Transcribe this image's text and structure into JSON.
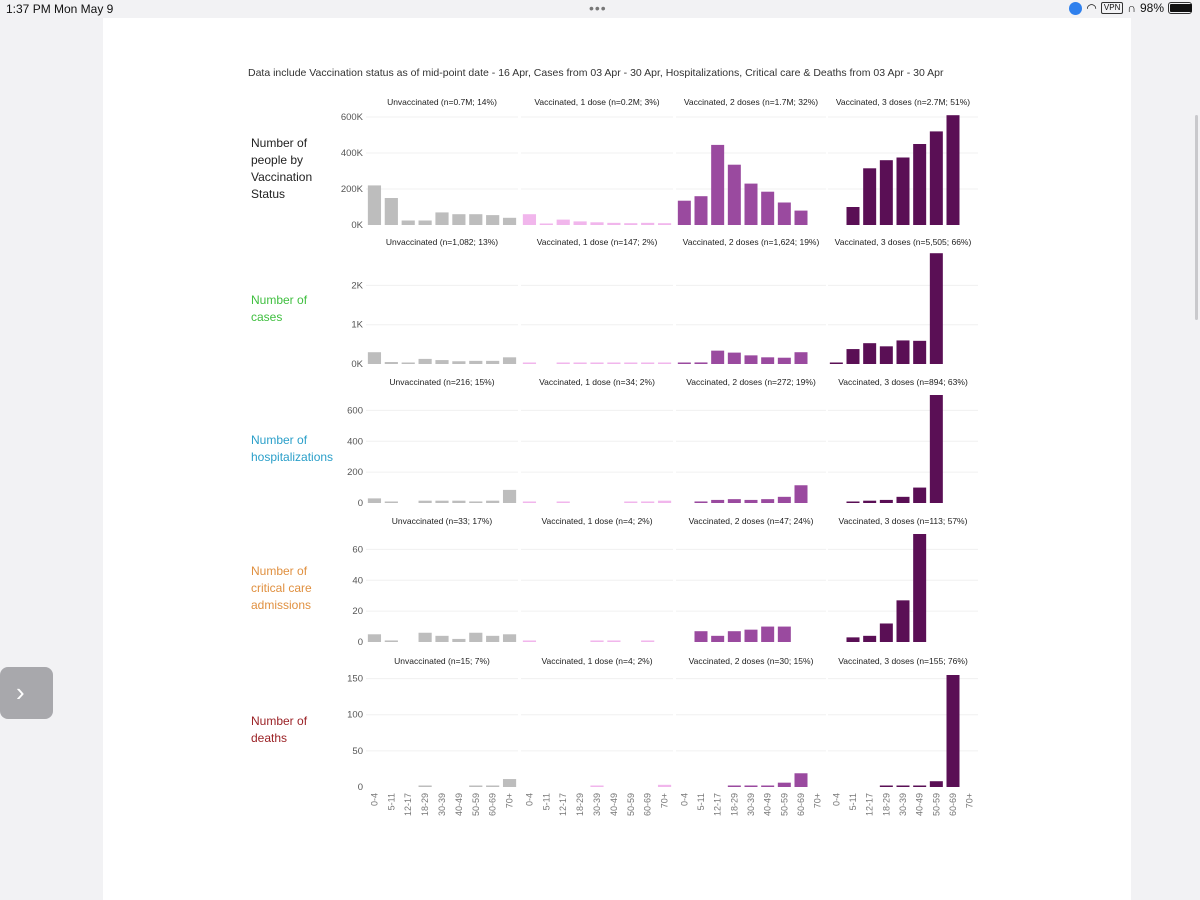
{
  "status_bar": {
    "time": "1:37 PM",
    "date": "Mon May 9",
    "vpn": "VPN",
    "battery": "98%",
    "battery_level": 0.98
  },
  "caption": "Data include Vaccination status as of mid-point date - 16 Apr, Cases  from  03 Apr - 30 Apr, Hospitalizations, Critical care & Deaths from 03 Apr - 30 Apr",
  "colors": {
    "unvaccinated": "#bdbdbd",
    "one_dose": "#f1b6ec",
    "two_doses": "#9a4a9f",
    "three_doses": "#5a0f55"
  },
  "chart_data": {
    "type": "bar",
    "categories": [
      "0-4",
      "5-11",
      "12-17",
      "18-29",
      "30-39",
      "40-49",
      "50-59",
      "60-69",
      "70+"
    ],
    "groups": [
      "unvaccinated",
      "one_dose",
      "two_doses",
      "three_doses"
    ],
    "rows": [
      {
        "label": "Number of people by Vaccination Status",
        "label_lines": [
          "Number of",
          "people by",
          "Vaccination",
          "Status"
        ],
        "label_color": "#222222",
        "ymax": 600000,
        "ticks": [
          {
            "v": 600000,
            "t": "600K"
          },
          {
            "v": 400000,
            "t": "400K"
          },
          {
            "v": 200000,
            "t": "200K"
          },
          {
            "v": 0,
            "t": "0K"
          }
        ],
        "panels": [
          {
            "title": "Unvaccinated (n=0.7M; 14%)",
            "values": [
              220000,
              150000,
              25000,
              25000,
              70000,
              60000,
              60000,
              55000,
              40000
            ]
          },
          {
            "title": "Vaccinated, 1 dose (n=0.2M; 3%)",
            "values": [
              60000,
              5000,
              30000,
              20000,
              15000,
              12000,
              10000,
              12000,
              10000
            ]
          },
          {
            "title": "Vaccinated, 2 doses (n=1.7M; 32%)",
            "values": [
              135000,
              160000,
              445000,
              335000,
              230000,
              185000,
              125000,
              80000,
              0
            ]
          },
          {
            "title": "Vaccinated, 3 doses (n=2.7M; 51%)",
            "values": [
              0,
              100000,
              315000,
              360000,
              375000,
              450000,
              520000,
              610000,
              0
            ]
          }
        ]
      },
      {
        "label": "Number of cases",
        "label_lines": [
          "Number of",
          "cases"
        ],
        "label_color": "#3fbf3f",
        "ymax": 2800,
        "ticks": [
          {
            "v": 2000,
            "t": "2K"
          },
          {
            "v": 1000,
            "t": "1K"
          },
          {
            "v": 0,
            "t": "0K"
          }
        ],
        "panels": [
          {
            "title": "Unvaccinated (n=1,082; 13%)",
            "values": [
              300,
              50,
              30,
              130,
              100,
              70,
              80,
              80,
              170
            ]
          },
          {
            "title": "Vaccinated, 1 dose (n=147; 2%)",
            "values": [
              20,
              0,
              15,
              20,
              15,
              15,
              15,
              15,
              20
            ]
          },
          {
            "title": "Vaccinated, 2 doses (n=1,624; 19%)",
            "values": [
              20,
              40,
              340,
              290,
              220,
              170,
              160,
              300,
              0
            ]
          },
          {
            "title": "Vaccinated, 3 doses (n=5,505; 66%)",
            "values": [
              20,
              380,
              530,
              450,
              600,
              590,
              2820,
              0,
              0
            ]
          }
        ]
      },
      {
        "label": "Number of hospitalizations",
        "label_lines": [
          "Number of",
          "hospitalizations"
        ],
        "label_color": "#2a9fc9",
        "ymax": 700,
        "ticks": [
          {
            "v": 600,
            "t": "600"
          },
          {
            "v": 400,
            "t": "400"
          },
          {
            "v": 200,
            "t": "200"
          },
          {
            "v": 0,
            "t": "0"
          }
        ],
        "panels": [
          {
            "title": "Unvaccinated (n=216; 15%)",
            "values": [
              30,
              5,
              0,
              15,
              15,
              15,
              10,
              15,
              85
            ]
          },
          {
            "title": "Vaccinated, 1 dose (n=34; 2%)",
            "values": [
              5,
              0,
              5,
              0,
              0,
              0,
              5,
              10,
              15
            ]
          },
          {
            "title": "Vaccinated, 2 doses (n=272; 19%)",
            "values": [
              0,
              10,
              20,
              25,
              20,
              25,
              40,
              115,
              0
            ]
          },
          {
            "title": "Vaccinated, 3 doses (n=894; 63%)",
            "values": [
              0,
              5,
              15,
              20,
              40,
              100,
              700,
              0,
              0
            ]
          }
        ]
      },
      {
        "label": "Number of critical care admissions",
        "label_lines": [
          "Number of",
          "critical care",
          "admissions"
        ],
        "label_color": "#e09040",
        "ymax": 70,
        "ticks": [
          {
            "v": 60,
            "t": "60"
          },
          {
            "v": 40,
            "t": "40"
          },
          {
            "v": 20,
            "t": "20"
          },
          {
            "v": 0,
            "t": "0"
          }
        ],
        "panels": [
          {
            "title": "Unvaccinated (n=33; 17%)",
            "values": [
              5,
              1,
              0,
              6,
              4,
              2,
              6,
              4,
              5
            ]
          },
          {
            "title": "Vaccinated, 1 dose (n=4; 2%)",
            "values": [
              1,
              0,
              0,
              0,
              1,
              1,
              0,
              1,
              0
            ]
          },
          {
            "title": "Vaccinated, 2 doses (n=47; 24%)",
            "values": [
              0,
              7,
              4,
              7,
              8,
              10,
              10,
              0,
              0
            ]
          },
          {
            "title": "Vaccinated, 3 doses (n=113; 57%)",
            "values": [
              0,
              3,
              4,
              12,
              27,
              70,
              0,
              0,
              0
            ]
          }
        ]
      },
      {
        "label": "Number of deaths",
        "label_lines": [
          "Number of",
          "deaths"
        ],
        "label_color": "#9b2226",
        "ymax": 155,
        "ticks": [
          {
            "v": 150,
            "t": "150"
          },
          {
            "v": 100,
            "t": "100"
          },
          {
            "v": 50,
            "t": "50"
          },
          {
            "v": 0,
            "t": "0"
          }
        ],
        "panels": [
          {
            "title": "Unvaccinated (n=15; 7%)",
            "values": [
              0,
              0,
              0,
              1,
              0,
              0,
              2,
              1,
              11
            ]
          },
          {
            "title": "Vaccinated, 1 dose (n=4; 2%)",
            "values": [
              0,
              0,
              0,
              0,
              1,
              0,
              0,
              0,
              3
            ]
          },
          {
            "title": "Vaccinated, 2 doses (n=30; 15%)",
            "values": [
              0,
              0,
              0,
              1,
              2,
              1,
              6,
              19,
              0
            ]
          },
          {
            "title": "Vaccinated, 3 doses (n=155; 76%)",
            "values": [
              0,
              0,
              0,
              2,
              2,
              1,
              8,
              155,
              0
            ]
          }
        ]
      }
    ]
  }
}
